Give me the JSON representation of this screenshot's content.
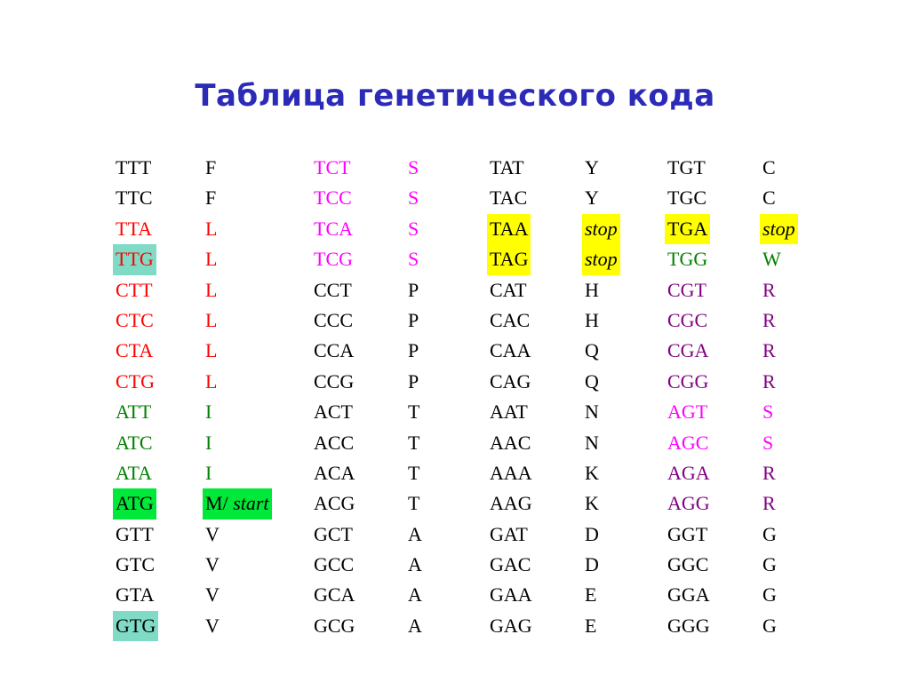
{
  "title": "Таблица генетического кода",
  "colors": {
    "default": "#000000",
    "red": "#ff0000",
    "magenta": "#ff00ff",
    "green": "#008000",
    "purple": "#800080",
    "highlight_yellow": "#ffff00",
    "highlight_green": "#00e83a",
    "highlight_teal": "#7fdac6"
  },
  "columns": [
    [
      {
        "codon": {
          "text": "TTT"
        },
        "aa": {
          "text": "F"
        }
      },
      {
        "codon": {
          "text": "TTC"
        },
        "aa": {
          "text": "F"
        }
      },
      {
        "codon": {
          "text": "TTA",
          "color": "red"
        },
        "aa": {
          "text": "L",
          "color": "red"
        }
      },
      {
        "codon": {
          "text": "TTG",
          "color": "red",
          "bg": "highlight_teal"
        },
        "aa": {
          "text": "L",
          "color": "red"
        }
      },
      {
        "codon": {
          "text": "CTT",
          "color": "red"
        },
        "aa": {
          "text": "L",
          "color": "red"
        }
      },
      {
        "codon": {
          "text": "CTC",
          "color": "red"
        },
        "aa": {
          "text": "L",
          "color": "red"
        }
      },
      {
        "codon": {
          "text": "CTA",
          "color": "red"
        },
        "aa": {
          "text": "L",
          "color": "red"
        }
      },
      {
        "codon": {
          "text": "CTG",
          "color": "red"
        },
        "aa": {
          "text": "L",
          "color": "red"
        }
      },
      {
        "codon": {
          "text": "ATT",
          "color": "green"
        },
        "aa": {
          "text": "I",
          "color": "green"
        }
      },
      {
        "codon": {
          "text": "ATC",
          "color": "green"
        },
        "aa": {
          "text": "I",
          "color": "green"
        }
      },
      {
        "codon": {
          "text": "ATA",
          "color": "green"
        },
        "aa": {
          "text": "I",
          "color": "green"
        }
      },
      {
        "codon": {
          "text": "ATG",
          "bg": "highlight_green"
        },
        "aa": {
          "text": "M/",
          "extra_italic": " start",
          "bg": "highlight_green"
        }
      },
      {
        "codon": {
          "text": "GTT"
        },
        "aa": {
          "text": "V"
        }
      },
      {
        "codon": {
          "text": "GTC"
        },
        "aa": {
          "text": "V"
        }
      },
      {
        "codon": {
          "text": "GTA"
        },
        "aa": {
          "text": "V"
        }
      },
      {
        "codon": {
          "text": "GTG",
          "bg": "highlight_teal"
        },
        "aa": {
          "text": "V"
        }
      }
    ],
    [
      {
        "codon": {
          "text": "TCT",
          "color": "magenta"
        },
        "aa": {
          "text": "S",
          "color": "magenta"
        }
      },
      {
        "codon": {
          "text": "TCC",
          "color": "magenta"
        },
        "aa": {
          "text": "S",
          "color": "magenta"
        }
      },
      {
        "codon": {
          "text": "TCA",
          "color": "magenta"
        },
        "aa": {
          "text": "S",
          "color": "magenta"
        }
      },
      {
        "codon": {
          "text": "TCG",
          "color": "magenta"
        },
        "aa": {
          "text": "S",
          "color": "magenta"
        }
      },
      {
        "codon": {
          "text": "CCT"
        },
        "aa": {
          "text": "P"
        }
      },
      {
        "codon": {
          "text": "CCC"
        },
        "aa": {
          "text": "P"
        }
      },
      {
        "codon": {
          "text": "CCA"
        },
        "aa": {
          "text": "P"
        }
      },
      {
        "codon": {
          "text": "CCG"
        },
        "aa": {
          "text": "P"
        }
      },
      {
        "codon": {
          "text": "ACT"
        },
        "aa": {
          "text": "T"
        }
      },
      {
        "codon": {
          "text": "ACC"
        },
        "aa": {
          "text": "T"
        }
      },
      {
        "codon": {
          "text": "ACA"
        },
        "aa": {
          "text": "T"
        }
      },
      {
        "codon": {
          "text": "ACG"
        },
        "aa": {
          "text": "T"
        }
      },
      {
        "codon": {
          "text": "GCT"
        },
        "aa": {
          "text": "A"
        }
      },
      {
        "codon": {
          "text": "GCC"
        },
        "aa": {
          "text": "A"
        }
      },
      {
        "codon": {
          "text": "GCA"
        },
        "aa": {
          "text": "A"
        }
      },
      {
        "codon": {
          "text": "GCG"
        },
        "aa": {
          "text": "A"
        }
      }
    ],
    [
      {
        "codon": {
          "text": "TAT"
        },
        "aa": {
          "text": "Y"
        }
      },
      {
        "codon": {
          "text": "TAC"
        },
        "aa": {
          "text": "Y"
        }
      },
      {
        "codon": {
          "text": "TAA",
          "bg": "highlight_yellow"
        },
        "aa": {
          "text": "stop",
          "italic": true,
          "bg": "highlight_yellow"
        }
      },
      {
        "codon": {
          "text": "TAG",
          "bg": "highlight_yellow"
        },
        "aa": {
          "text": "stop",
          "italic": true,
          "bg": "highlight_yellow"
        }
      },
      {
        "codon": {
          "text": "CAT"
        },
        "aa": {
          "text": "H"
        }
      },
      {
        "codon": {
          "text": "CAC"
        },
        "aa": {
          "text": "H"
        }
      },
      {
        "codon": {
          "text": "CAA"
        },
        "aa": {
          "text": "Q"
        }
      },
      {
        "codon": {
          "text": "CAG"
        },
        "aa": {
          "text": "Q"
        }
      },
      {
        "codon": {
          "text": "AAT"
        },
        "aa": {
          "text": "N"
        }
      },
      {
        "codon": {
          "text": "AAC"
        },
        "aa": {
          "text": "N"
        }
      },
      {
        "codon": {
          "text": "AAA"
        },
        "aa": {
          "text": "K"
        }
      },
      {
        "codon": {
          "text": "AAG"
        },
        "aa": {
          "text": "K"
        }
      },
      {
        "codon": {
          "text": "GAT"
        },
        "aa": {
          "text": "D"
        }
      },
      {
        "codon": {
          "text": "GAC"
        },
        "aa": {
          "text": "D"
        }
      },
      {
        "codon": {
          "text": "GAA"
        },
        "aa": {
          "text": "E"
        }
      },
      {
        "codon": {
          "text": "GAG"
        },
        "aa": {
          "text": "E"
        }
      }
    ],
    [
      {
        "codon": {
          "text": "TGT"
        },
        "aa": {
          "text": "C"
        }
      },
      {
        "codon": {
          "text": "TGC"
        },
        "aa": {
          "text": "C"
        }
      },
      {
        "codon": {
          "text": "TGA",
          "bg": "highlight_yellow"
        },
        "aa": {
          "text": "stop",
          "italic": true,
          "bg": "highlight_yellow"
        }
      },
      {
        "codon": {
          "text": "TGG",
          "color": "green"
        },
        "aa": {
          "text": "W",
          "color": "green"
        }
      },
      {
        "codon": {
          "text": "CGT",
          "color": "purple"
        },
        "aa": {
          "text": "R",
          "color": "purple"
        }
      },
      {
        "codon": {
          "text": "CGC",
          "color": "purple"
        },
        "aa": {
          "text": "R",
          "color": "purple"
        }
      },
      {
        "codon": {
          "text": "CGA",
          "color": "purple"
        },
        "aa": {
          "text": "R",
          "color": "purple"
        }
      },
      {
        "codon": {
          "text": "CGG",
          "color": "purple"
        },
        "aa": {
          "text": "R",
          "color": "purple"
        }
      },
      {
        "codon": {
          "text": "AGT",
          "color": "magenta"
        },
        "aa": {
          "text": "S",
          "color": "magenta"
        }
      },
      {
        "codon": {
          "text": "AGC",
          "color": "magenta"
        },
        "aa": {
          "text": "S",
          "color": "magenta"
        }
      },
      {
        "codon": {
          "text": "AGA",
          "color": "purple"
        },
        "aa": {
          "text": "R",
          "color": "purple"
        }
      },
      {
        "codon": {
          "text": "AGG",
          "color": "purple"
        },
        "aa": {
          "text": "R",
          "color": "purple"
        }
      },
      {
        "codon": {
          "text": "GGT"
        },
        "aa": {
          "text": "G"
        }
      },
      {
        "codon": {
          "text": "GGC"
        },
        "aa": {
          "text": "G"
        }
      },
      {
        "codon": {
          "text": "GGA"
        },
        "aa": {
          "text": "G"
        }
      },
      {
        "codon": {
          "text": "GGG"
        },
        "aa": {
          "text": "G"
        }
      }
    ]
  ]
}
